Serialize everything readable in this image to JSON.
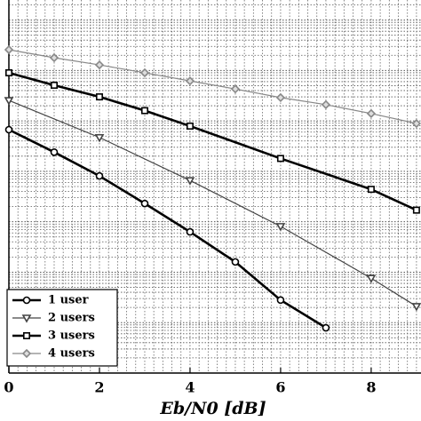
{
  "chart_data": {
    "type": "line",
    "xlabel": "Eb/N0 [dB]",
    "xlim": [
      0,
      9.1
    ],
    "xticks": [
      0,
      2,
      4,
      6,
      8
    ],
    "ylim": [
      1e-08,
      0.25
    ],
    "log_y": true,
    "grid": true,
    "legend": "lower left",
    "series": [
      {
        "name": "1 user",
        "color": "#000000",
        "marker": "circle",
        "x": [
          0,
          1,
          2,
          3,
          4,
          5,
          6,
          7
        ],
        "values": [
          0.00067,
          0.00024,
          8.1e-05,
          2.3e-05,
          6.3e-06,
          1.6e-06,
          2.8e-07,
          7.9e-08
        ]
      },
      {
        "name": "2 users",
        "color": "#444444",
        "marker": "triangle",
        "x": [
          0,
          2,
          4,
          6,
          8,
          9
        ],
        "values": [
          0.00255,
          0.00047,
          6.6e-05,
          8.1e-06,
          7.6e-07,
          2.1e-07
        ]
      },
      {
        "name": "3 users",
        "color": "#000000",
        "marker": "square",
        "x": [
          0,
          1,
          2,
          3,
          4,
          6,
          8,
          9
        ],
        "values": [
          0.009,
          0.0051,
          0.003,
          0.0016,
          0.00079,
          0.00018,
          4.4e-05,
          1.7e-05
        ]
      },
      {
        "name": "4 users",
        "color": "#888888",
        "marker": "diamond",
        "x": [
          0,
          1,
          2,
          3,
          4,
          5,
          6,
          7,
          8,
          9
        ],
        "values": [
          0.0258,
          0.0179,
          0.0129,
          0.009,
          0.0062,
          0.0043,
          0.0029,
          0.0021,
          0.0014,
          0.00089
        ]
      }
    ]
  }
}
